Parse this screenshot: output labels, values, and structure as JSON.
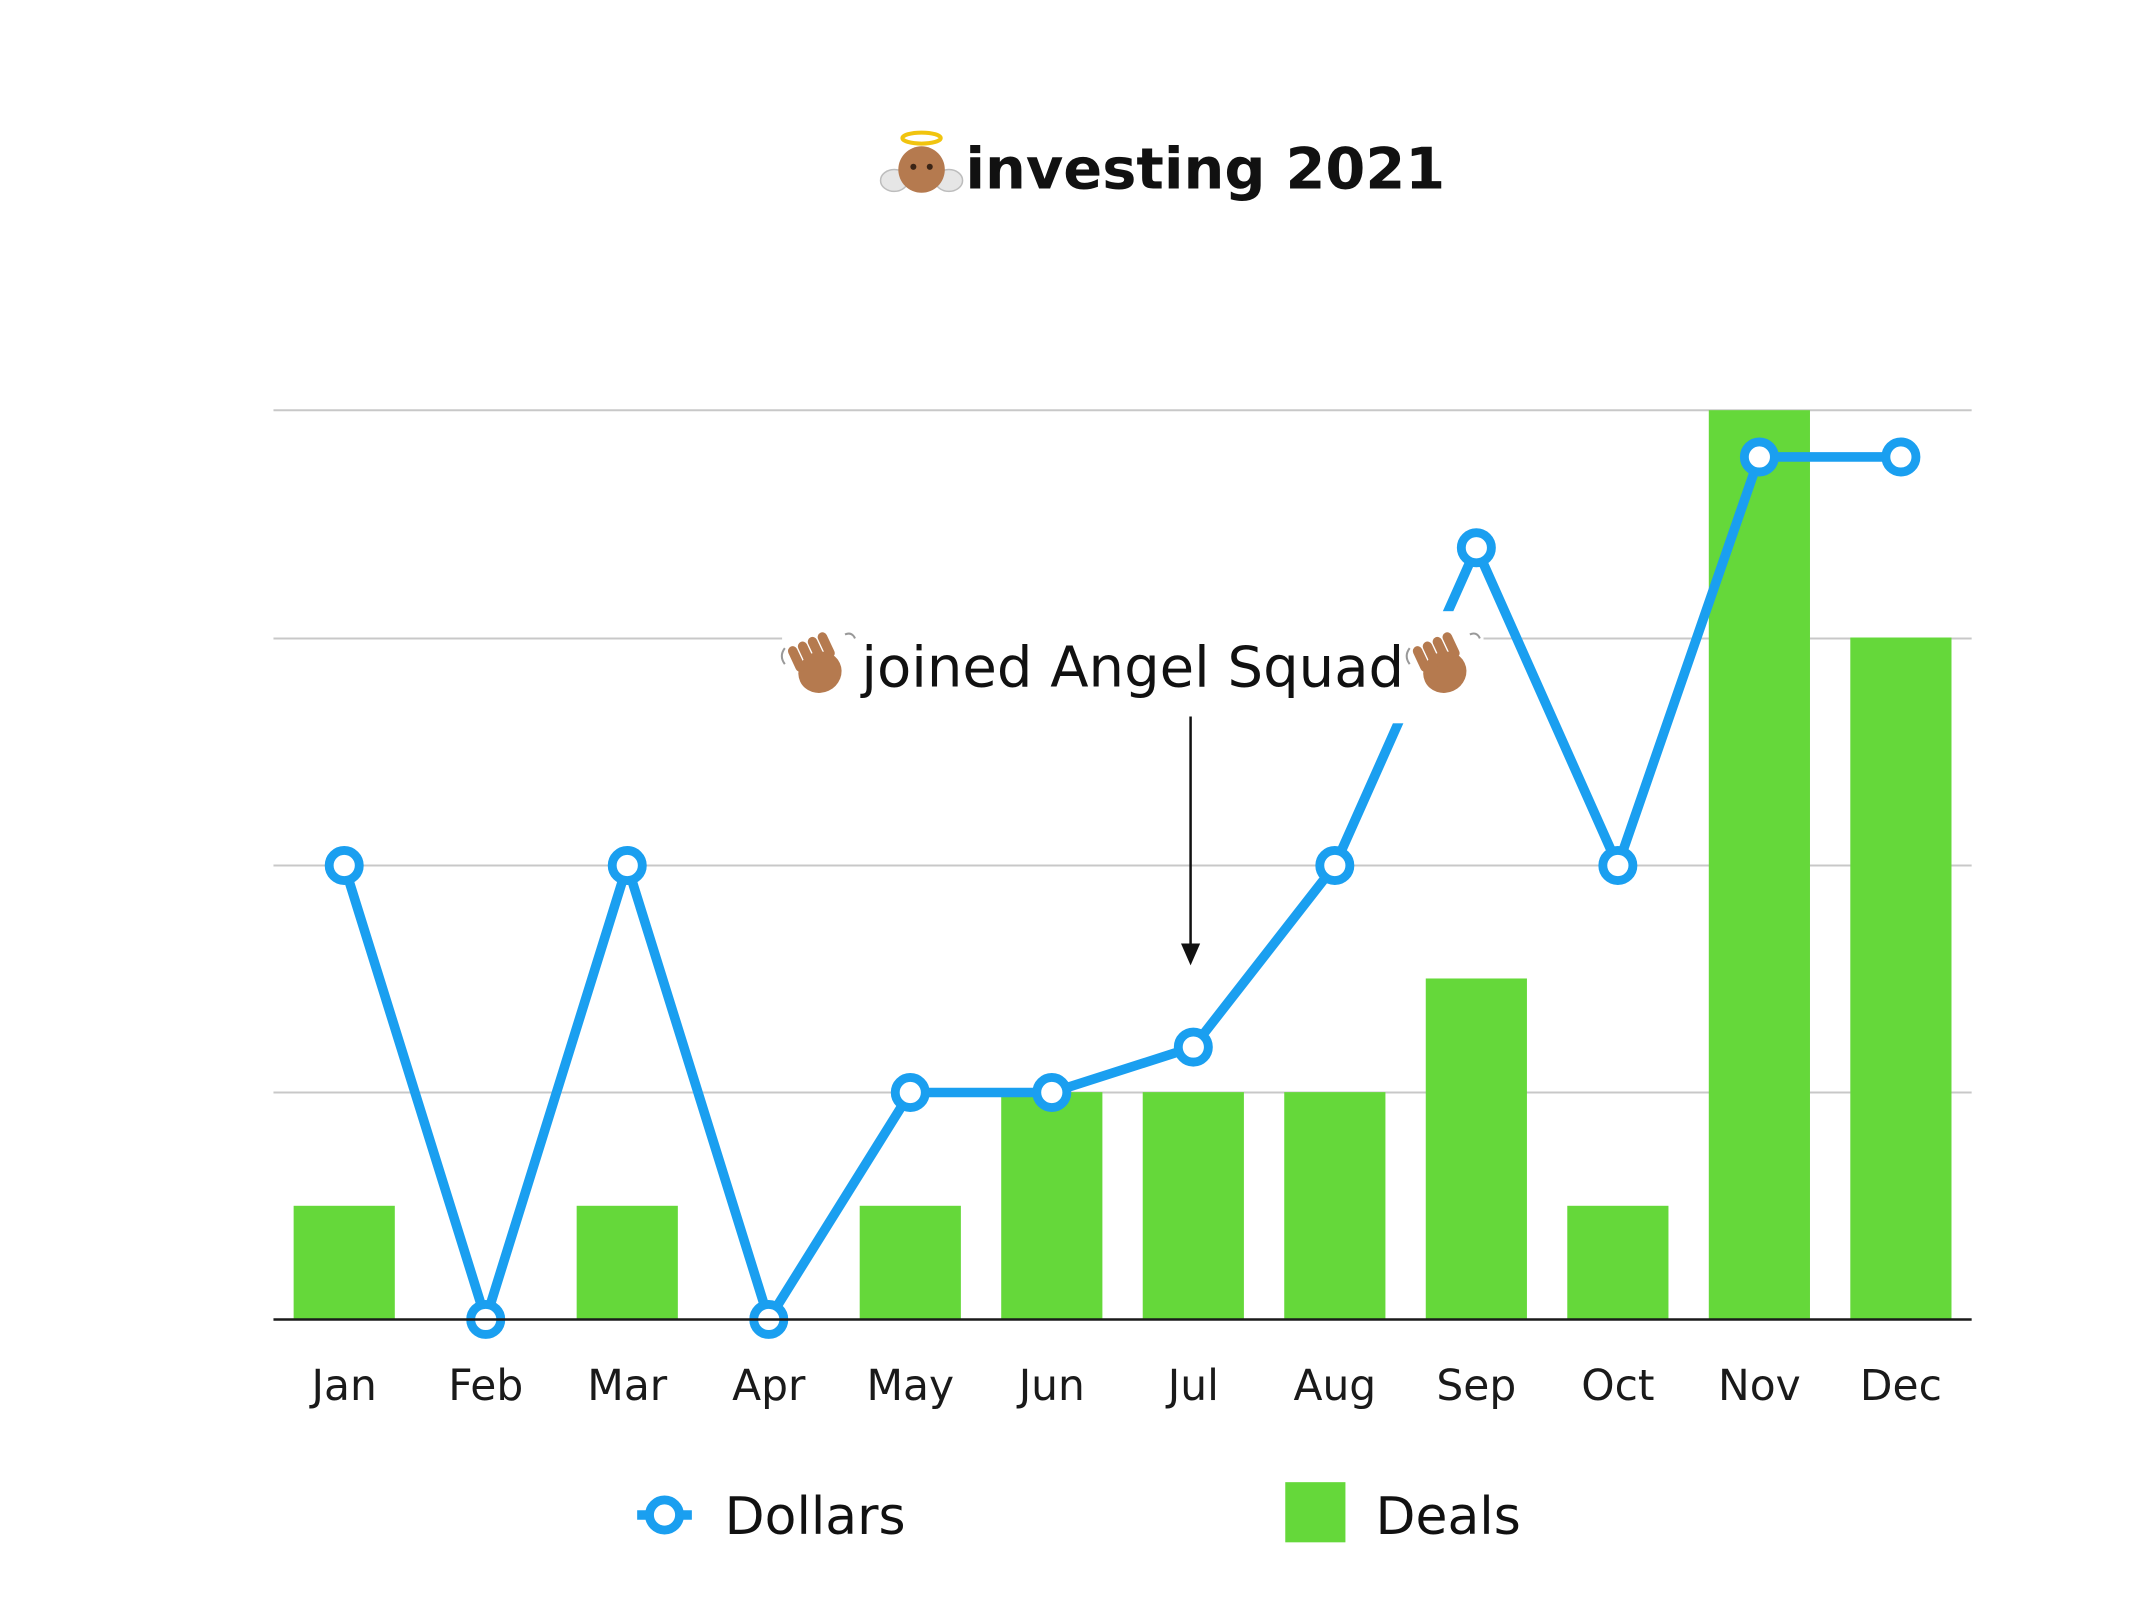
{
  "chart_data": {
    "type": "bar",
    "title": "investing 2021",
    "title_icon": "angel-baby-emoji",
    "categories": [
      "Jan",
      "Feb",
      "Mar",
      "Apr",
      "May",
      "Jun",
      "Jul",
      "Aug",
      "Sep",
      "Oct",
      "Nov",
      "Dec"
    ],
    "series": [
      {
        "name": "Dollars",
        "type": "line",
        "color": "#1a9ff0",
        "values": [
          2,
          0,
          2,
          0,
          1,
          1,
          1.2,
          2,
          3.4,
          2,
          3.8,
          3.8
        ]
      },
      {
        "name": "Deals",
        "type": "bar",
        "color": "#65d83a",
        "values": [
          1,
          0,
          1,
          0,
          1,
          2,
          2,
          2,
          3,
          1,
          8,
          6
        ]
      }
    ],
    "grid": true,
    "legend_position": "bottom",
    "annotation": {
      "text": "joined Angel Squad",
      "icon": "waving-hand-emoji",
      "target_category": "Jul"
    }
  }
}
